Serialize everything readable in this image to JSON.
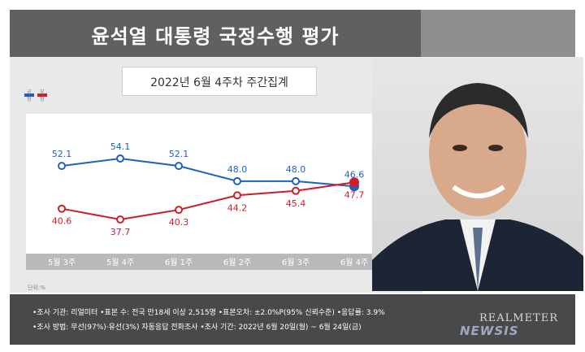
{
  "title": "윤석열 대통령 국정수행 평가",
  "subtitle": "2022년 6월 4주차 주간집계",
  "legend": {
    "positive": "긍정",
    "negative": "부정"
  },
  "unit_label": "단위:%",
  "footer": {
    "line1": "•조사 기관: 리얼미터 •표본 수: 전국 만18세 이상 2,515명 •표본오차: ±2.0%P(95% 신뢰수준) •응답률: 3.9%",
    "line2": "•조사 방법: 무선(97%)·유선(3%) 자동응답 전화조사 •조사 기간: 2022년 6월 20일(월) ~ 6월 24일(금)"
  },
  "brand": "REALMETER",
  "watermark": "NEWSIS",
  "colors": {
    "positive": "#1f5fbf",
    "negative": "#cc1f2a",
    "title_bg": "#5f6062",
    "footer_bg": "#48494b"
  },
  "chart_data": {
    "type": "line",
    "categories": [
      "5월 3주",
      "5월 4주",
      "6월 1주",
      "6월 2주",
      "6월 3주",
      "6월 4주"
    ],
    "series": [
      {
        "name": "긍정",
        "values": [
          52.1,
          54.1,
          52.1,
          48.0,
          48.0,
          46.6
        ]
      },
      {
        "name": "부정",
        "values": [
          40.6,
          37.7,
          40.3,
          44.2,
          45.4,
          47.7
        ]
      }
    ],
    "title": "",
    "xlabel": "",
    "ylabel": "",
    "grid": false,
    "legend_position": "top-left"
  }
}
